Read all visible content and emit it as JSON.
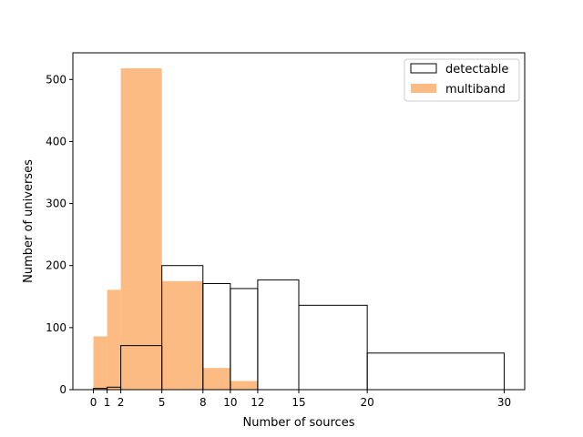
{
  "chart_data": {
    "type": "bar",
    "subtype": "histogram-overlay",
    "xlabel": "Number of sources",
    "ylabel": "Number of universes",
    "xlim": [
      -1.5,
      31.5
    ],
    "ylim": [
      0,
      543
    ],
    "xticks": [
      0,
      1,
      2,
      5,
      8,
      10,
      12,
      15,
      20,
      30
    ],
    "yticks": [
      0,
      100,
      200,
      300,
      400,
      500
    ],
    "bin_edges": [
      0,
      1,
      2,
      5,
      8,
      10,
      12,
      15,
      20,
      30
    ],
    "legend_position": "top-right",
    "grid": false,
    "series": [
      {
        "name": "multiband",
        "style": "filled",
        "color": "#fdbb84",
        "values": [
          86,
          161,
          518,
          175,
          35,
          14,
          0,
          0,
          0
        ]
      },
      {
        "name": "detectable",
        "style": "outline",
        "color": "#000000",
        "values": [
          2,
          4,
          71,
          200,
          171,
          163,
          177,
          136,
          59
        ]
      }
    ],
    "legend": [
      {
        "label": "detectable",
        "style": "outline"
      },
      {
        "label": "multiband",
        "style": "filled"
      }
    ]
  }
}
